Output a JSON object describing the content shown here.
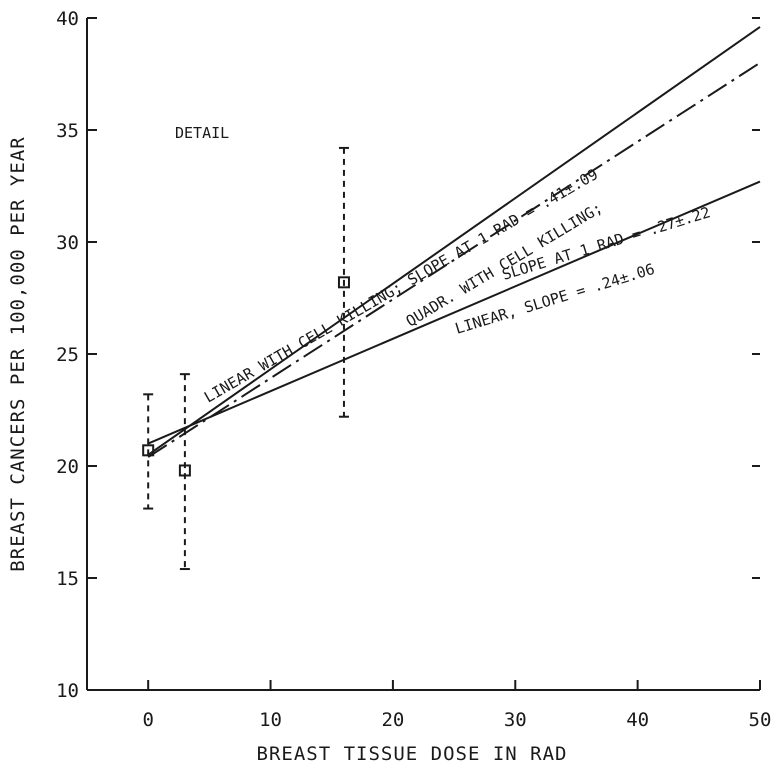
{
  "chart_data": {
    "type": "line",
    "title": "",
    "xlabel": "BREAST TISSUE DOSE IN RAD",
    "ylabel": "BREAST CANCERS PER 100,000 PER YEAR",
    "xlim": [
      -5,
      50
    ],
    "ylim": [
      10,
      40
    ],
    "xticks": [
      0,
      10,
      20,
      30,
      40,
      50
    ],
    "yticks": [
      10,
      15,
      20,
      25,
      30,
      35,
      40
    ],
    "grid": false,
    "points": [
      {
        "x": 0,
        "y": 20.7,
        "ylow": 18.1,
        "yhigh": 23.2
      },
      {
        "x": 3,
        "y": 19.8,
        "ylow": 15.4,
        "yhigh": 24.1
      },
      {
        "x": 16,
        "y": 28.2,
        "ylow": 22.2,
        "yhigh": 34.2
      }
    ],
    "series": [
      {
        "x": [
          0,
          50
        ],
        "y": [
          20.5,
          39.6
        ],
        "style": "solid"
      },
      {
        "x": [
          0,
          50
        ],
        "y": [
          20.4,
          38.0
        ],
        "style": "dashdot"
      },
      {
        "x": [
          0,
          50
        ],
        "y": [
          21.0,
          32.7
        ],
        "style": "solid"
      }
    ],
    "annotations": [
      {
        "key": "detail",
        "text": "DETAIL"
      },
      {
        "key": "linear_cell_killing",
        "text": "LINEAR WITH CELL KILLING; SLOPE AT 1 RAD = .41±.09"
      },
      {
        "key": "quadr_line1",
        "text": "QUADR. WITH CELL KILLING;"
      },
      {
        "key": "quadr_line2",
        "text": "SLOPE AT 1 RAD = .27±.22"
      },
      {
        "key": "linear",
        "text": "LINEAR, SLOPE = .24±.06"
      }
    ]
  }
}
